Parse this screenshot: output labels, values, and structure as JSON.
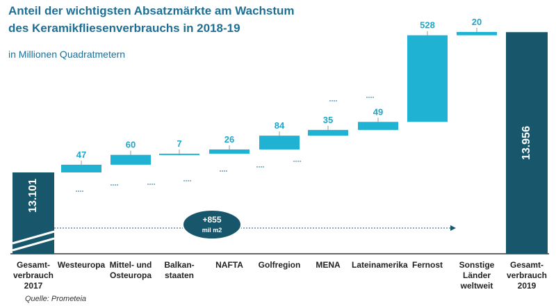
{
  "title_line1": "Anteil der wichtigsten Absatzmärkte am Wachstum",
  "title_line2": "des Keramikfliesenverbrauchs in 2018-19",
  "subtitle": "in Millionen Quadratmetern",
  "source": "Quelle: Prometeia",
  "colors": {
    "total": "#17566b",
    "delta": "#1fb2d3",
    "label": "#1fa6c8"
  },
  "growth_badge": {
    "value": "+855",
    "unit": "mil m2"
  },
  "chart_data": {
    "type": "waterfall",
    "title": "Anteil der wichtigsten Absatzmärkte am Wachstum des Keramikfliesenverbrauchs in 2018-19",
    "ylabel": "in Millionen Quadratmetern",
    "categories": [
      "Gesamt-\nverbrauch\n2017",
      "Westeuropa",
      "Mittel- und\nOsteuropa",
      "Balkan-\nstaaten",
      "NAFTA",
      "Golfregion",
      "MENA",
      "Lateinamerika",
      "Fernost",
      "Sonstige\nLänder\nweltweit",
      "Gesamt-\nverbrauch\n2019"
    ],
    "kinds": [
      "total",
      "delta",
      "delta",
      "delta",
      "delta",
      "delta",
      "delta",
      "delta",
      "delta",
      "delta",
      "total"
    ],
    "values": [
      13101,
      47,
      60,
      7,
      26,
      84,
      35,
      49,
      528,
      20,
      13956
    ],
    "value_labels": [
      "13.101",
      "47",
      "60",
      "7",
      "26",
      "84",
      "35",
      "49",
      "528",
      "20",
      "13.956"
    ]
  }
}
